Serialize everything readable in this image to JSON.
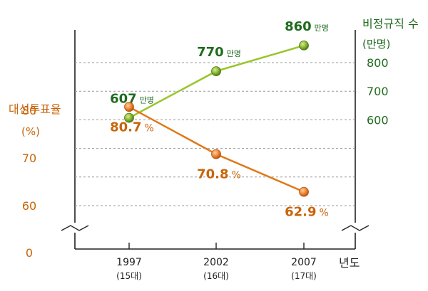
{
  "chart_data": {
    "type": "line",
    "categories": [
      "1997",
      "2002",
      "2007"
    ],
    "category_sublabels": [
      "(15대)",
      "(16대)",
      "(17대)"
    ],
    "xlabel": "년도",
    "zero_label": "0",
    "left_axis": {
      "title": "대선투표율",
      "unit": "(%)",
      "ticks": [
        80,
        70,
        60
      ],
      "range": [
        56,
        90
      ],
      "color": "#c8650a"
    },
    "right_axis": {
      "title": "비정규직 수",
      "unit": "(만명)",
      "ticks": [
        800,
        700,
        600
      ],
      "range": [
        450,
        960
      ],
      "color": "#1f6b1f"
    },
    "series": [
      {
        "axis": "right",
        "values": [
          607,
          770,
          860
        ],
        "labels": [
          "607",
          "770",
          "860"
        ],
        "label_unit": "만명",
        "line_color": "#9ac52a",
        "marker_color": "#7aa532",
        "label_color": "#1f6b1f"
      },
      {
        "axis": "left",
        "values": [
          80.7,
          70.8,
          62.9
        ],
        "labels": [
          "80.7",
          "70.8",
          "62.9"
        ],
        "label_unit": "%",
        "line_color": "#e07818",
        "marker_color": "#ee8a3a",
        "label_color": "#c8650a"
      }
    ],
    "grid": true
  }
}
